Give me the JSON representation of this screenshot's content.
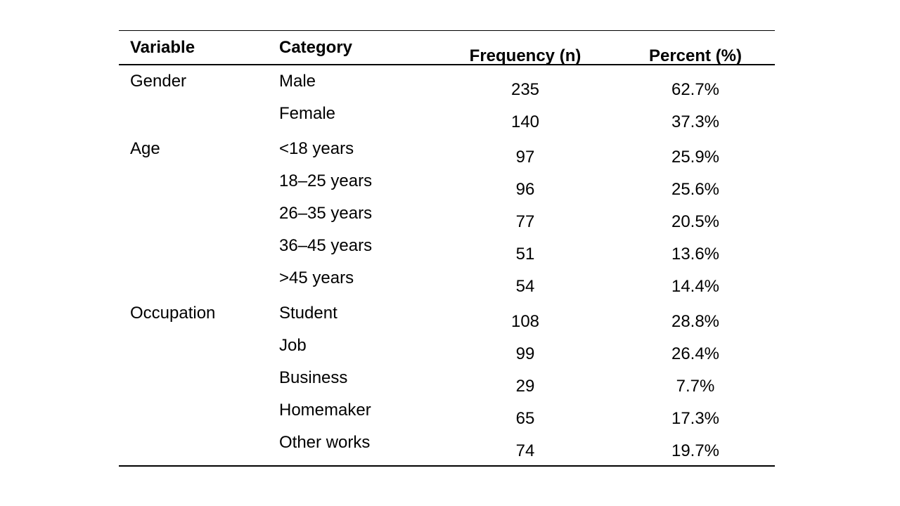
{
  "table": {
    "headers": {
      "variable": "Variable",
      "category": "Category",
      "frequency": "Frequency (n)",
      "percent": "Percent (%)"
    },
    "rows": [
      {
        "variable": "Gender",
        "category": "Male",
        "frequency": "235",
        "percent": "62.7%"
      },
      {
        "variable": "",
        "category": "Female",
        "frequency": "140",
        "percent": "37.3%"
      },
      {
        "variable": "Age",
        "category": "<18 years",
        "frequency": "97",
        "percent": "25.9%"
      },
      {
        "variable": "",
        "category": "18–25 years",
        "frequency": "96",
        "percent": "25.6%"
      },
      {
        "variable": "",
        "category": "26–35 years",
        "frequency": "77",
        "percent": "20.5%"
      },
      {
        "variable": "",
        "category": "36–45 years",
        "frequency": "51",
        "percent": "13.6%"
      },
      {
        "variable": "",
        "category": ">45 years",
        "frequency": "54",
        "percent": "14.4%"
      },
      {
        "variable": "Occupation",
        "category": "Student",
        "frequency": "108",
        "percent": "28.8%"
      },
      {
        "variable": "",
        "category": "Job",
        "frequency": "99",
        "percent": "26.4%"
      },
      {
        "variable": "",
        "category": "Business",
        "frequency": "29",
        "percent": "7.7%"
      },
      {
        "variable": "",
        "category": "Homemaker",
        "frequency": "65",
        "percent": "17.3%"
      },
      {
        "variable": "",
        "category": "Other works",
        "frequency": "74",
        "percent": "19.7%"
      }
    ]
  }
}
